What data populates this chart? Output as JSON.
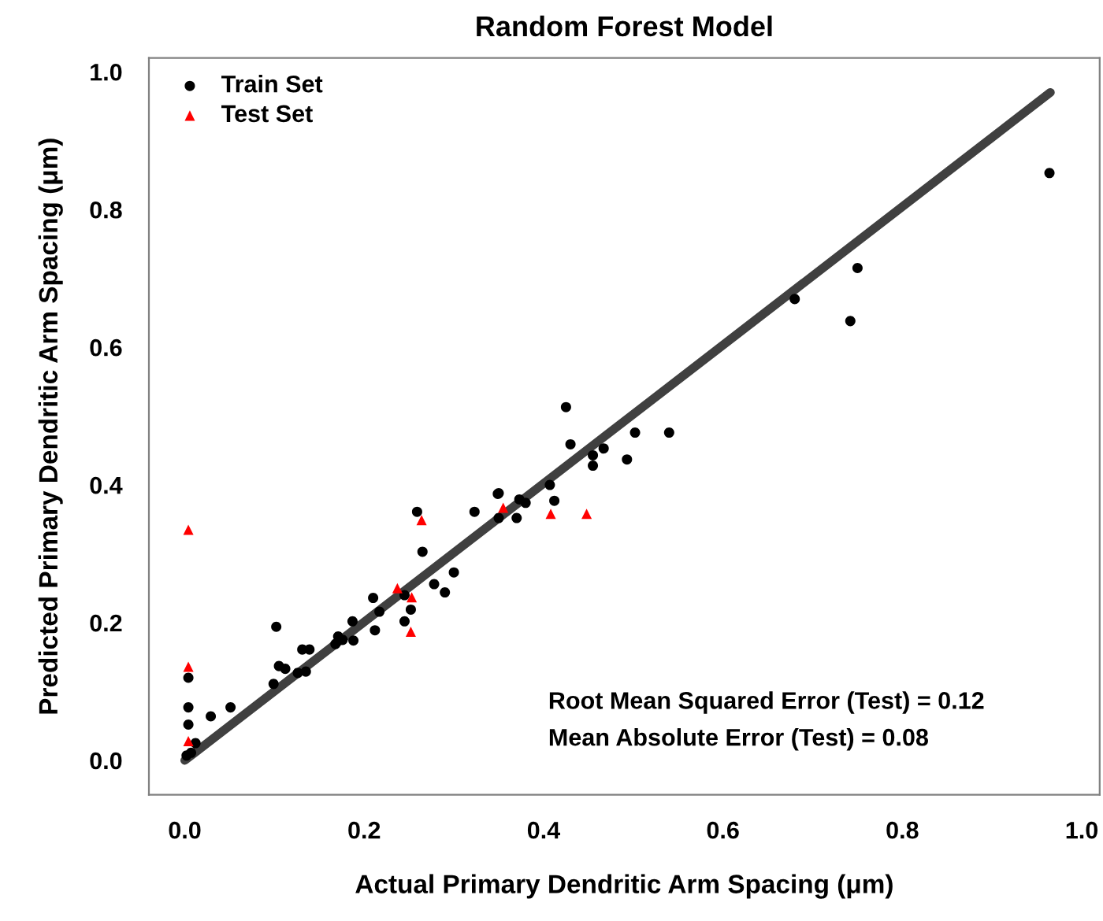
{
  "chart_data": {
    "type": "scatter",
    "title": "Random Forest Model",
    "xlabel": "Actual Primary Dendritic Arm Spacing (μm)",
    "ylabel": "Predicted Primary Dendritic Arm Spacing (μm)",
    "xlim": [
      -0.04,
      1.02
    ],
    "ylim": [
      -0.05,
      1.02
    ],
    "xticks": [
      {
        "value": 0,
        "label": "0.0"
      },
      0.2,
      0.4,
      0.6,
      0.8,
      {
        "value": 1,
        "label": "1.0"
      }
    ],
    "yticks": [
      {
        "value": 0,
        "label": "0.0"
      },
      0.2,
      0.4,
      0.6,
      0.8,
      {
        "value": 1,
        "label": "1.0"
      }
    ],
    "grid": false,
    "legend": "top left",
    "annotations": [
      "Root Mean Squared Error (Test) = 0.12",
      "Mean Absolute Error (Test) = 0.08"
    ],
    "series": [
      {
        "type": "line",
        "color": "#404040",
        "marker": "none",
        "line_style": "solid",
        "x": [
          0,
          0.965
        ],
        "values": [
          0,
          0.97
        ]
      },
      {
        "name": "Train Set",
        "color": "#000000",
        "marker": "circle",
        "x": [
          0.259,
          0.323,
          0.349,
          0.265,
          0.3,
          0.278,
          0.29,
          0.21,
          0.217,
          0.245,
          0.252,
          0.245,
          0.212,
          0.187,
          0.171,
          0.176,
          0.168,
          0.188,
          0.102,
          0.131,
          0.139,
          0.105,
          0.112,
          0.126,
          0.135,
          0.099,
          0.051,
          0.029,
          0.004,
          0.004,
          0.004,
          0.012,
          0.007,
          0.002,
          0.425,
          0.43,
          0.467,
          0.455,
          0.455,
          0.493,
          0.407,
          0.412,
          0.35,
          0.373,
          0.38,
          0.35,
          0.37,
          0.54,
          0.502,
          0.964,
          0.75,
          0.742,
          0.68
        ],
        "values": [
          0.361,
          0.361,
          0.387,
          0.303,
          0.273,
          0.256,
          0.244,
          0.236,
          0.216,
          0.24,
          0.219,
          0.202,
          0.189,
          0.202,
          0.18,
          0.175,
          0.169,
          0.174,
          0.194,
          0.161,
          0.161,
          0.137,
          0.133,
          0.127,
          0.129,
          0.111,
          0.077,
          0.064,
          0.12,
          0.077,
          0.052,
          0.025,
          0.011,
          0.007,
          0.513,
          0.459,
          0.453,
          0.443,
          0.428,
          0.437,
          0.4,
          0.377,
          0.388,
          0.379,
          0.374,
          0.352,
          0.352,
          0.476,
          0.476,
          0.853,
          0.715,
          0.638,
          0.67
        ]
      },
      {
        "name": "Test Set",
        "color": "#ff0000",
        "marker": "triangle",
        "x": [
          0.004,
          0.004,
          0.004,
          0.264,
          0.237,
          0.253,
          0.252,
          0.355,
          0.408,
          0.448
        ],
        "values": [
          0.335,
          0.136,
          0.028,
          0.349,
          0.25,
          0.237,
          0.187,
          0.367,
          0.358,
          0.358
        ]
      }
    ]
  }
}
